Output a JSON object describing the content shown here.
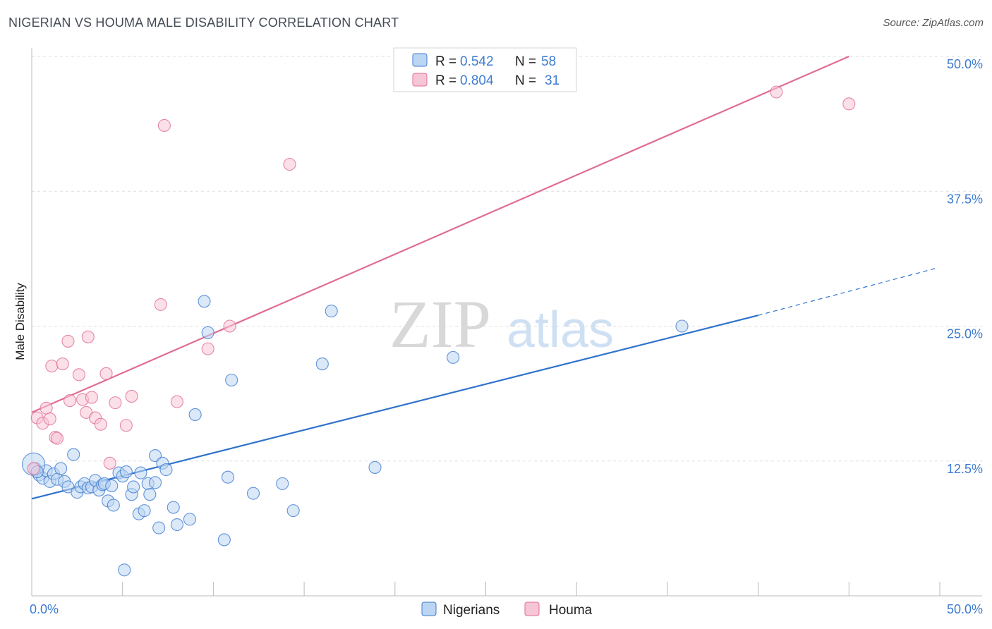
{
  "title": "NIGERIAN VS HOUMA MALE DISABILITY CORRELATION CHART",
  "source": "Source: ZipAtlas.com",
  "watermark": {
    "zip": "ZIP",
    "atlas": "atlas"
  },
  "colors": {
    "blue": "#3d7bd0",
    "blue_fill": "#bcd5f2",
    "blue_line": "#2f72cc",
    "pink": "#e06c96",
    "pink_fill": "#f7c6d6",
    "pink_line": "#e06c96",
    "grid": "#dddddd",
    "axis": "#bbbbbb"
  },
  "legend": {
    "rows": [
      {
        "r_label": "R =",
        "r_value": "0.542",
        "n_label": "N =",
        "n_value": "58"
      },
      {
        "r_label": "R =",
        "r_value": "0.804",
        "n_label": "N =",
        "n_value": "31"
      }
    ]
  },
  "chart_data": {
    "type": "scatter",
    "title": "NIGERIAN VS HOUMA MALE DISABILITY CORRELATION CHART",
    "xlabel": "",
    "ylabel": "Male Disability",
    "xlim": [
      0,
      50
    ],
    "ylim": [
      0,
      50
    ],
    "x_tick_labels": [
      "0.0%",
      "50.0%"
    ],
    "y_ticks": [
      12.5,
      25.0,
      37.5,
      50.0
    ],
    "y_tick_labels": [
      "12.5%",
      "25.0%",
      "37.5%",
      "50.0%"
    ],
    "grid": true,
    "legend_position": "top-center",
    "series": [
      {
        "name": "Nigerians",
        "color": "#3d7bd0",
        "points": [
          [
            0.2,
            11.8
          ],
          [
            0.4,
            11.2
          ],
          [
            0.6,
            10.9
          ],
          [
            0.8,
            11.6
          ],
          [
            1.0,
            10.6
          ],
          [
            1.2,
            11.3
          ],
          [
            1.4,
            10.8
          ],
          [
            1.6,
            11.8
          ],
          [
            1.8,
            10.6
          ],
          [
            2.0,
            10.1
          ],
          [
            2.3,
            13.1
          ],
          [
            2.5,
            9.6
          ],
          [
            2.7,
            10.1
          ],
          [
            2.9,
            10.4
          ],
          [
            3.1,
            10.0
          ],
          [
            3.3,
            10.1
          ],
          [
            3.5,
            10.7
          ],
          [
            3.7,
            9.8
          ],
          [
            3.9,
            10.3
          ],
          [
            4.0,
            10.4
          ],
          [
            4.2,
            8.8
          ],
          [
            4.4,
            10.2
          ],
          [
            4.5,
            8.4
          ],
          [
            4.8,
            11.4
          ],
          [
            5.0,
            11.1
          ],
          [
            5.2,
            11.5
          ],
          [
            5.5,
            9.4
          ],
          [
            5.6,
            10.1
          ],
          [
            5.9,
            7.6
          ],
          [
            6.0,
            11.4
          ],
          [
            6.2,
            7.9
          ],
          [
            6.4,
            10.4
          ],
          [
            6.5,
            9.4
          ],
          [
            6.8,
            10.5
          ],
          [
            6.8,
            13.0
          ],
          [
            7.0,
            6.3
          ],
          [
            7.2,
            12.3
          ],
          [
            7.4,
            11.7
          ],
          [
            7.8,
            8.2
          ],
          [
            8.0,
            6.6
          ],
          [
            8.7,
            7.1
          ],
          [
            9.0,
            16.8
          ],
          [
            9.5,
            27.3
          ],
          [
            9.7,
            24.4
          ],
          [
            10.6,
            5.2
          ],
          [
            10.8,
            11.0
          ],
          [
            11.0,
            20.0
          ],
          [
            12.2,
            9.5
          ],
          [
            13.8,
            10.4
          ],
          [
            14.4,
            7.9
          ],
          [
            16.0,
            21.5
          ],
          [
            16.5,
            26.4
          ],
          [
            18.9,
            11.9
          ],
          [
            23.2,
            22.1
          ],
          [
            35.8,
            25.0
          ],
          [
            5.1,
            2.4
          ],
          [
            0.1,
            12.2
          ],
          [
            0.3,
            11.5
          ]
        ],
        "trend": {
          "x": [
            0,
            40
          ],
          "y": [
            9.0,
            26.0
          ]
        },
        "trend_dashed": {
          "x": [
            40,
            50
          ],
          "y": [
            26.0,
            30.5
          ]
        }
      },
      {
        "name": "Houma",
        "color": "#e06c96",
        "points": [
          [
            0.1,
            11.8
          ],
          [
            0.3,
            16.5
          ],
          [
            0.6,
            16.0
          ],
          [
            0.8,
            17.4
          ],
          [
            1.0,
            16.4
          ],
          [
            1.1,
            21.3
          ],
          [
            1.3,
            14.7
          ],
          [
            1.4,
            14.6
          ],
          [
            1.7,
            21.5
          ],
          [
            2.0,
            23.6
          ],
          [
            2.1,
            18.1
          ],
          [
            2.6,
            20.5
          ],
          [
            2.8,
            18.2
          ],
          [
            3.0,
            17.0
          ],
          [
            3.1,
            24.0
          ],
          [
            3.3,
            18.4
          ],
          [
            3.5,
            16.5
          ],
          [
            3.8,
            15.9
          ],
          [
            4.1,
            20.6
          ],
          [
            4.3,
            12.3
          ],
          [
            4.6,
            17.9
          ],
          [
            5.2,
            15.8
          ],
          [
            5.5,
            18.5
          ],
          [
            7.1,
            27.0
          ],
          [
            7.3,
            43.6
          ],
          [
            8.0,
            18.0
          ],
          [
            9.7,
            22.9
          ],
          [
            10.9,
            25.0
          ],
          [
            14.2,
            40.0
          ],
          [
            41.0,
            46.7
          ],
          [
            45.0,
            45.6
          ]
        ],
        "trend": {
          "x": [
            0,
            45
          ],
          "y": [
            17.0,
            50.0
          ]
        }
      }
    ]
  }
}
